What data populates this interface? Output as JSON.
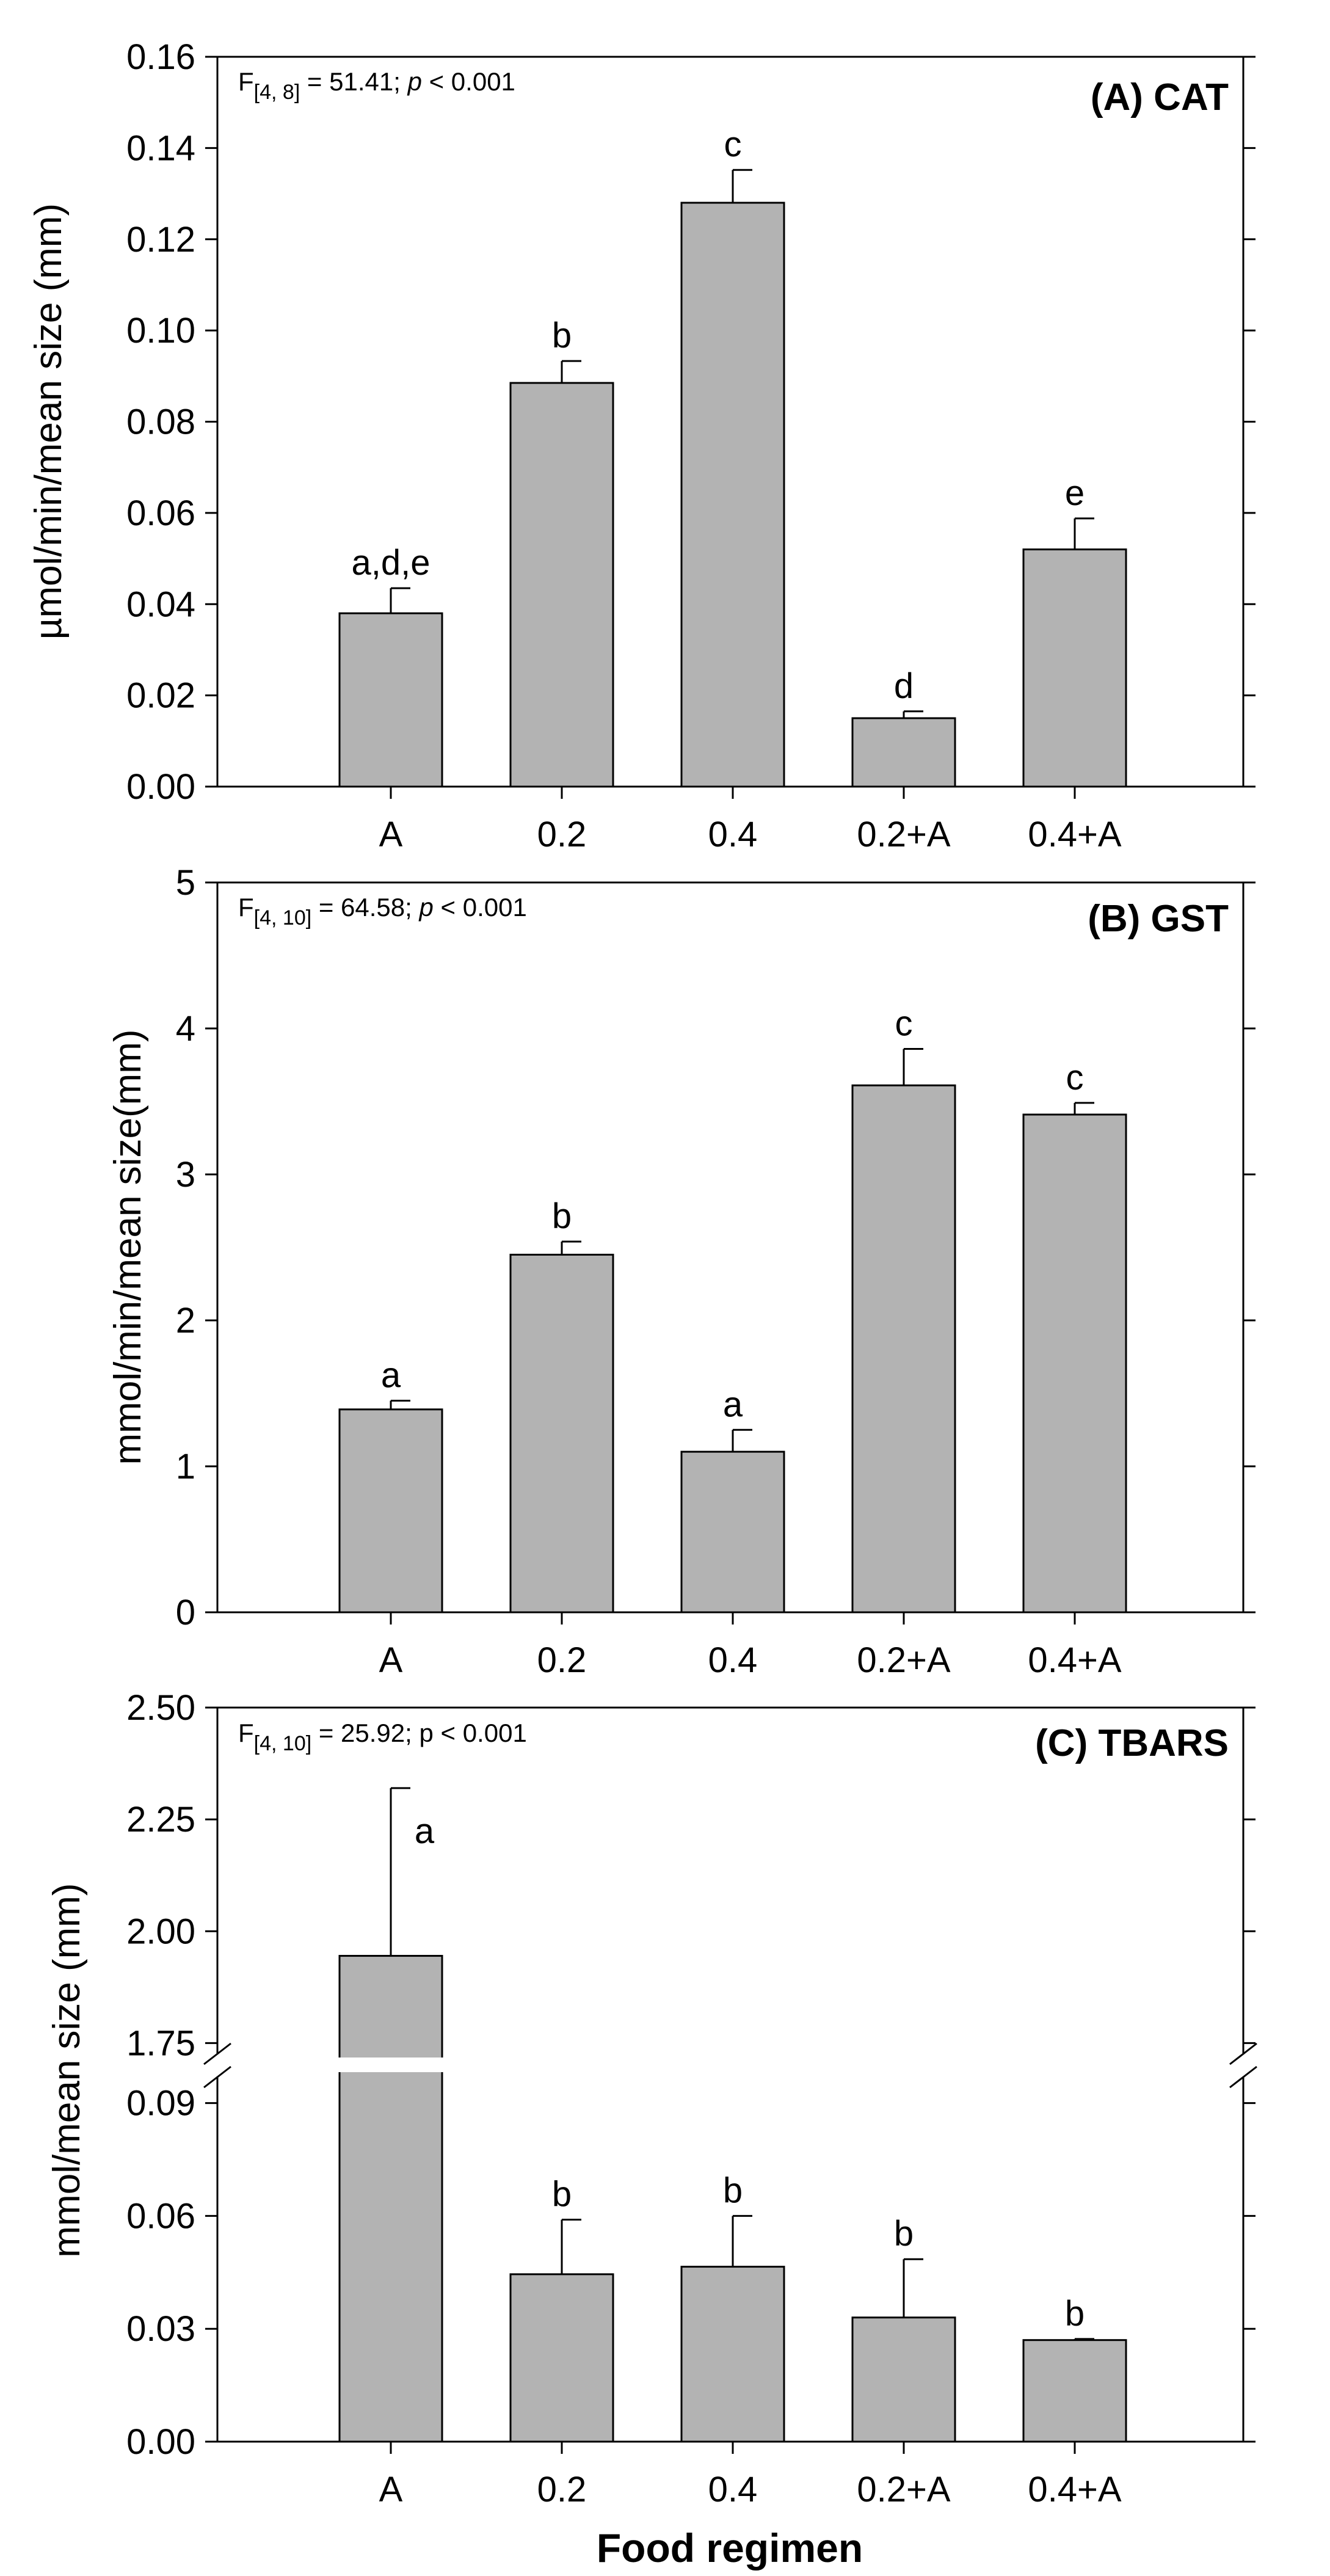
{
  "colors": {
    "bar_fill": "#b3b3b3",
    "bar_stroke": "#000000",
    "axis": "#000000",
    "background": "#ffffff"
  },
  "x_axis_title": "Food regimen",
  "chart_data": [
    {
      "type": "bar",
      "title": "(A) CAT",
      "ylabel": "µmol/min/mean size (mm)",
      "stat": {
        "prefix": "F",
        "subscript": "[4, 8]",
        "rest": " = 51.41; ",
        "p_symbol": "p",
        "p_text": " < 0.001"
      },
      "categories": [
        "A",
        "0.2",
        "0.4",
        "0.2+A",
        "0.4+A"
      ],
      "values": [
        0.038,
        0.0885,
        0.128,
        0.015,
        0.052
      ],
      "errors": [
        0.0055,
        0.0048,
        0.0072,
        0.0015,
        0.0068
      ],
      "letters": [
        "a,d,e",
        "b",
        "c",
        "d",
        "e"
      ],
      "ylim": [
        0,
        0.16
      ],
      "yticks": [
        0.0,
        0.02,
        0.04,
        0.06,
        0.08,
        0.1,
        0.12,
        0.14,
        0.16
      ],
      "ytick_labels": [
        "0.00",
        "0.02",
        "0.04",
        "0.06",
        "0.08",
        "0.10",
        "0.12",
        "0.14",
        "0.16"
      ]
    },
    {
      "type": "bar",
      "title": "(B) GST",
      "ylabel": "mmol/min/mean size(mm)",
      "stat": {
        "prefix": "F",
        "subscript": "[4, 10]",
        "rest": " = 64.58; ",
        "p_symbol": "p",
        "p_text": " < 0.001"
      },
      "categories": [
        "A",
        "0.2",
        "0.4",
        "0.2+A",
        "0.4+A"
      ],
      "values": [
        1.39,
        2.45,
        1.1,
        3.61,
        3.41
      ],
      "errors": [
        0.06,
        0.09,
        0.15,
        0.25,
        0.08
      ],
      "letters": [
        "a",
        "b",
        "a",
        "c",
        "c"
      ],
      "ylim": [
        0,
        5
      ],
      "yticks": [
        0,
        1,
        2,
        3,
        4,
        5
      ],
      "ytick_labels": [
        "0",
        "1",
        "2",
        "3",
        "4",
        "5"
      ]
    },
    {
      "type": "bar",
      "title": "(C) TBARS",
      "ylabel": "mmol/mean size (mm)",
      "stat": {
        "prefix": "F",
        "subscript": "[4, 10]",
        "rest": " = 25.92; p < 0.001",
        "p_symbol": "",
        "p_text": ""
      },
      "categories": [
        "A",
        "0.2",
        "0.4",
        "0.2+A",
        "0.4+A"
      ],
      "values": [
        1.945,
        0.0445,
        0.0465,
        0.033,
        0.027
      ],
      "errors": [
        0.375,
        0.0145,
        0.0135,
        0.0155,
        0.0003
      ],
      "letters": [
        "a",
        "b",
        "b",
        "b",
        "b"
      ],
      "broken_axis": true,
      "lower_ylim": [
        0,
        0.1
      ],
      "lower_yticks": [
        0.0,
        0.03,
        0.06,
        0.09
      ],
      "lower_ytick_labels": [
        "0.00",
        "0.03",
        "0.06",
        "0.09"
      ],
      "upper_ylim": [
        1.7,
        2.5
      ],
      "upper_yticks": [
        1.75,
        2.0,
        2.25,
        2.5
      ],
      "upper_ytick_labels": [
        "1.75",
        "2.00",
        "2.25",
        "2.50"
      ]
    }
  ]
}
